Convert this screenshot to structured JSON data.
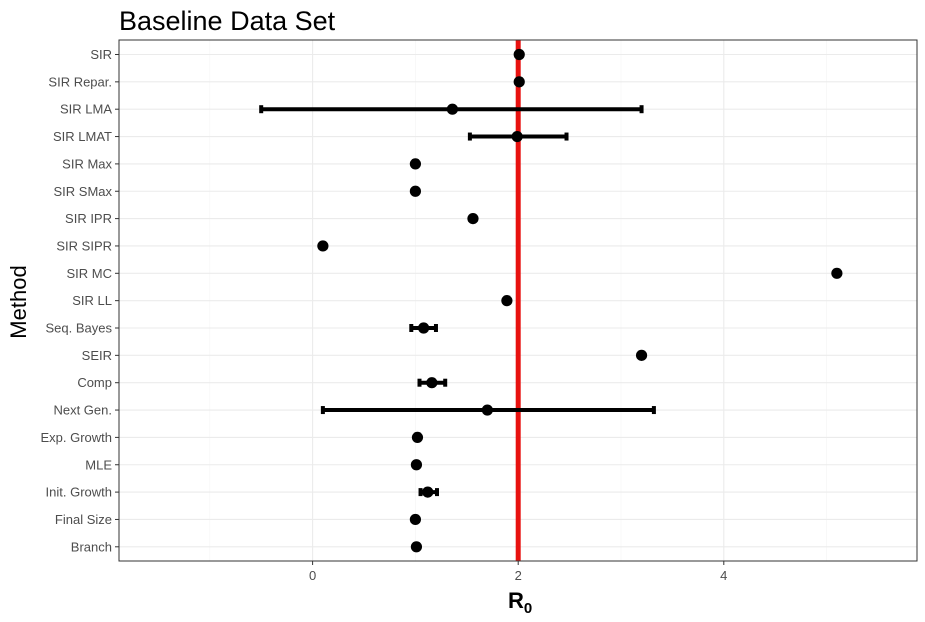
{
  "chart_data": {
    "type": "dot-errorbar",
    "title": "Baseline Data Set",
    "ylabel": "Method",
    "xlabel": "R",
    "xlabel_subscript": "0",
    "xlim": [
      -1.9,
      5.8
    ],
    "xticks": [
      0,
      2,
      4
    ],
    "reference_line": 2,
    "grid": true,
    "colors": {
      "reference_line": "#e8110f",
      "points": "#000000",
      "grid_major": "#ebebeb",
      "grid_minor": "#f4f4f4",
      "panel_border": "#333333"
    },
    "categories": [
      "SIR",
      "SIR Repar.",
      "SIR LMA",
      "SIR LMAT",
      "SIR Max",
      "SIR SMax",
      "SIR IPR",
      "SIR SIPR",
      "SIR MC",
      "SIR LL",
      "Seq. Bayes",
      "SEIR",
      "Comp",
      "Next Gen.",
      "Exp. Growth",
      "MLE",
      "Init. Growth",
      "Final Size",
      "Branch"
    ],
    "values": [
      2.01,
      2.01,
      1.36,
      1.99,
      1.0,
      1.0,
      1.56,
      0.1,
      5.1,
      1.89,
      1.08,
      3.2,
      1.16,
      1.7,
      1.02,
      1.01,
      1.12,
      1.0,
      1.01
    ],
    "lower": [
      2.01,
      2.01,
      -0.5,
      1.53,
      1.0,
      1.0,
      1.56,
      0.1,
      5.1,
      1.87,
      0.96,
      3.2,
      1.04,
      0.1,
      1.02,
      1.01,
      1.05,
      1.0,
      1.01
    ],
    "upper": [
      2.01,
      2.01,
      3.2,
      2.47,
      1.0,
      1.0,
      1.56,
      0.1,
      5.1,
      1.91,
      1.2,
      3.2,
      1.29,
      3.32,
      1.02,
      1.01,
      1.21,
      1.0,
      1.01
    ]
  }
}
